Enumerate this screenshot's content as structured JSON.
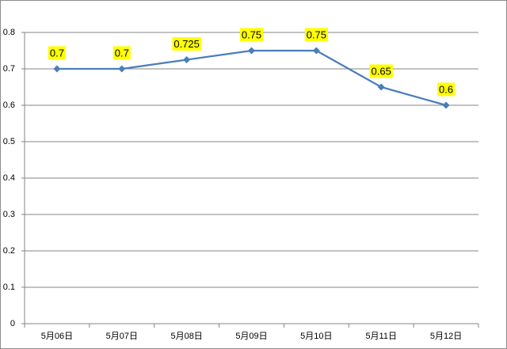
{
  "chart_data": {
    "type": "line",
    "categories": [
      "5月06日",
      "5月07日",
      "5月08日",
      "5月09日",
      "5月10日",
      "5月11日",
      "5月12日"
    ],
    "values": [
      0.7,
      0.7,
      0.725,
      0.75,
      0.75,
      0.65,
      0.6
    ],
    "color": "#4a7ebb",
    "ylim": [
      0,
      0.8
    ],
    "yticks": [
      0,
      0.1,
      0.2,
      0.3,
      0.4,
      0.5,
      0.6,
      0.7,
      0.8
    ],
    "grid": true
  }
}
